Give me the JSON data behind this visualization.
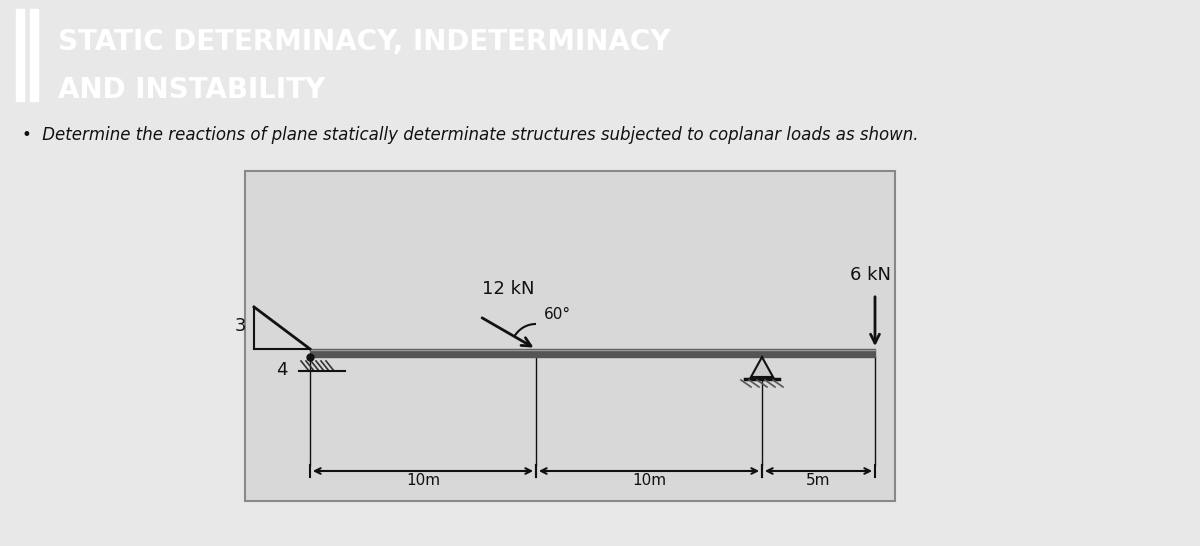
{
  "title_line1": "STATIC DETERMINACY, INDETERMINACY",
  "title_line2": "AND INSTABILITY",
  "title_bg": "#3a3a3a",
  "title_text_color": "#ffffff",
  "subtitle": "Determine the reactions of plane statically determinate structures subjected to coplanar loads as shown.",
  "bg_color": "#e8e8e8",
  "diagram_bg": "#d4d4d4",
  "load1_label": "12 kN",
  "load2_label": "6 kN",
  "angle_label": "60°",
  "ratio_label_3": "3",
  "ratio_label_4": "4",
  "dim1": "10m",
  "dim2": "10m",
  "dim3": "5m"
}
